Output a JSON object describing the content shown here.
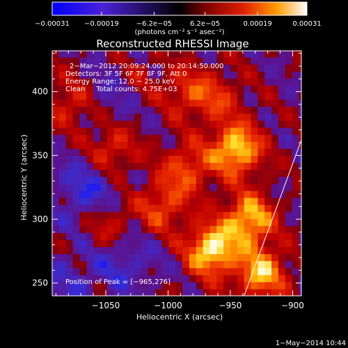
{
  "chart_data": {
    "type": "heatmap",
    "title": "Reconstructed RHESSI Image",
    "xlabel": "Heliocentric X (arcsec)",
    "ylabel": "Heliocentric Y (arcsec)",
    "xlim": [
      -1093,
      -893
    ],
    "ylim": [
      240,
      432
    ],
    "x_ticks": [
      {
        "value": -1050,
        "label": "−1050"
      },
      {
        "value": -1000,
        "label": "−1000"
      },
      {
        "value": -950,
        "label": "−950"
      },
      {
        "value": -900,
        "label": "−900"
      }
    ],
    "y_ticks": [
      {
        "value": 250,
        "label": "250"
      },
      {
        "value": 300,
        "label": "300"
      },
      {
        "value": 350,
        "label": "350"
      },
      {
        "value": 400,
        "label": "400"
      }
    ],
    "colorbar": {
      "min": -0.00031,
      "max": 0.00031,
      "ticks": [
        {
          "value": -0.00031,
          "label": "−0.00031"
        },
        {
          "value": -0.00019,
          "label": "−0.00019"
        },
        {
          "value": -6.2e-05,
          "label": "−6.2e−05"
        },
        {
          "value": 6.2e-05,
          "label": "6.2e−05"
        },
        {
          "value": 0.00019,
          "label": "0.00019"
        },
        {
          "value": 0.00031,
          "label": "0.00031"
        }
      ],
      "units_label": "(photons cm⁻² s⁻¹ asec⁻²)"
    },
    "info_lines": [
      "2−Mar−2012 20:09:24.000 to 20:14:50.000",
      "Detectors: 3F 5F 6F 7F 8F 9F, Att 0",
      "Energy Range: 12.0 − 25.0 keV",
      "Clean     Total counts: 4.75E+03"
    ],
    "peak_label": "Position of Peak = [−965,276]",
    "hot_spots": [
      {
        "x": -965,
        "y": 276,
        "amp": 0.00031
      },
      {
        "x": -945,
        "y": 355,
        "amp": 0.00029
      },
      {
        "x": -935,
        "y": 300,
        "amp": 0.00027
      },
      {
        "x": -925,
        "y": 258,
        "amp": 0.00025
      },
      {
        "x": -1005,
        "y": 310,
        "amp": 0.00016
      },
      {
        "x": -985,
        "y": 340,
        "amp": 0.00017
      },
      {
        "x": -1045,
        "y": 355,
        "amp": 0.00014
      },
      {
        "x": -1078,
        "y": 392,
        "amp": 0.00012
      },
      {
        "x": -985,
        "y": 400,
        "amp": 0.00013
      },
      {
        "x": -1048,
        "y": 296,
        "amp": 0.00012
      },
      {
        "x": -960,
        "y": 395,
        "amp": 0.00012
      },
      {
        "x": -1025,
        "y": 410,
        "amp": 9e-05
      }
    ],
    "cold_spots": [
      {
        "x": -1065,
        "y": 322,
        "amp": -0.00012
      },
      {
        "x": -1035,
        "y": 268,
        "amp": -9e-05
      },
      {
        "x": -1040,
        "y": 400,
        "amp": -8e-05
      },
      {
        "x": -1080,
        "y": 250,
        "amp": -7e-05
      }
    ],
    "limb_line": [
      [
        -939,
        240
      ],
      [
        -893,
        362
      ]
    ],
    "grid": false
  },
  "footer": {
    "timestamp": "1−May−2014 10:44"
  }
}
